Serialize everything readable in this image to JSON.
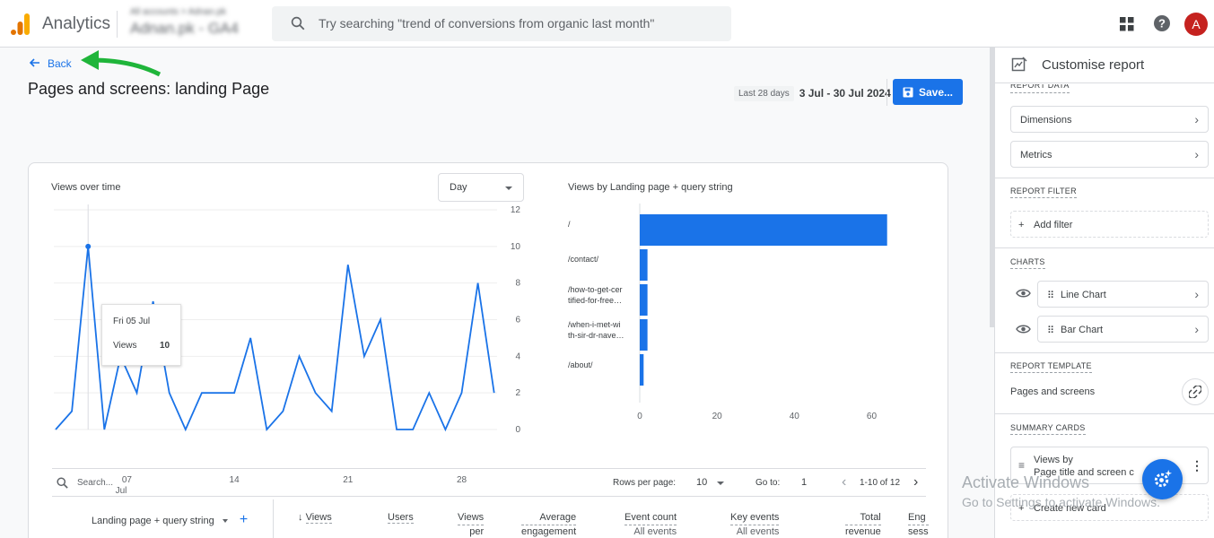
{
  "app": {
    "title": "Analytics",
    "account_small": "All accounts > Adnan.pk",
    "account_name": "Adnan.pk - GA4"
  },
  "search": {
    "placeholder": "Try searching \"trend of conversions from organic last month\""
  },
  "user": {
    "avatar_letter": "A"
  },
  "nav": {
    "back_label": "Back"
  },
  "page": {
    "title": "Pages and screens: landing Page"
  },
  "date": {
    "label": "Last 28 days",
    "range": "3 Jul - 30 Jul 2024"
  },
  "actions": {
    "save_label": "Save..."
  },
  "line_card": {
    "title": "Views over time",
    "granularity": "Day",
    "x_ticks": [
      "07",
      "14",
      "21",
      "28"
    ],
    "x_month": "Jul",
    "y_ticks": [
      "12",
      "10",
      "8",
      "6",
      "4",
      "2",
      "0"
    ]
  },
  "tooltip": {
    "date": "Fri 05 Jul",
    "metric": "Views",
    "value": "10"
  },
  "bar_card": {
    "title": "Views by Landing page + query string",
    "labels": [
      "/",
      "/contact/",
      "/how-to-get-cer",
      "tified-for-free…",
      "/when-i-met-wi",
      "th-sir-dr-nave…",
      "/about/"
    ],
    "x_ticks": [
      "0",
      "20",
      "40",
      "60"
    ]
  },
  "chart_data": [
    {
      "type": "line",
      "title": "Views over time",
      "x": [
        "3 Jul",
        "4 Jul",
        "5 Jul",
        "6 Jul",
        "7 Jul",
        "8 Jul",
        "9 Jul",
        "10 Jul",
        "11 Jul",
        "12 Jul",
        "13 Jul",
        "14 Jul",
        "15 Jul",
        "16 Jul",
        "17 Jul",
        "18 Jul",
        "19 Jul",
        "20 Jul",
        "21 Jul",
        "22 Jul",
        "23 Jul",
        "24 Jul",
        "25 Jul",
        "26 Jul",
        "27 Jul",
        "28 Jul",
        "29 Jul",
        "30 Jul"
      ],
      "series": [
        {
          "name": "Views",
          "values": [
            0,
            1,
            10,
            0,
            4,
            2,
            7,
            2,
            0,
            2,
            2,
            2,
            5,
            0,
            1,
            4,
            2,
            1,
            9,
            4,
            6,
            0,
            0,
            2,
            0,
            2,
            8,
            2
          ]
        }
      ],
      "ylim": [
        0,
        12
      ],
      "grid": true
    },
    {
      "type": "bar",
      "title": "Views by Landing page + query string",
      "categories": [
        "/",
        "/contact/",
        "/how-to-get-certified-for-free…",
        "/when-i-met-with-sir-dr-nave…",
        "/about/"
      ],
      "values": [
        64,
        2,
        2,
        2,
        1
      ],
      "xlim": [
        0,
        65
      ]
    }
  ],
  "table": {
    "search_placeholder": "Search...",
    "rows_per_page_label": "Rows per page:",
    "rows_per_page": "10",
    "goto_label": "Go to:",
    "goto_value": "1",
    "page_count": "1-10 of 12",
    "dimension_header": "Landing page + query string",
    "columns": [
      {
        "label": "Views",
        "sub": ""
      },
      {
        "label": "Users",
        "sub": ""
      },
      {
        "label": "Views",
        "sub": "per"
      },
      {
        "label": "Average",
        "sub": "engagement"
      },
      {
        "label": "Event count",
        "sub": "All events"
      },
      {
        "label": "Key events",
        "sub": "All events"
      },
      {
        "label": "Total",
        "sub": "revenue"
      },
      {
        "label": "Eng",
        "sub": "sess"
      }
    ]
  },
  "panel": {
    "title": "Customise report",
    "report_data_label": "REPORT DATA",
    "dimensions": "Dimensions",
    "metrics": "Metrics",
    "filter_label": "REPORT FILTER",
    "add_filter": "Add filter",
    "charts_label": "CHARTS",
    "line_chart": "Line Chart",
    "bar_chart": "Bar Chart",
    "template_label": "REPORT TEMPLATE",
    "template_value": "Pages and screens",
    "summary_label": "SUMMARY CARDS",
    "summary_card_line1": "Views by",
    "summary_card_line2": "Page title and screen c",
    "create_card": "Create new card"
  },
  "watermark": {
    "line1": "Activate Windows",
    "line2": "Go to Settings to activate Windows."
  },
  "colors": {
    "primary": "#1a73e8",
    "annotation_arrow": "#1fb53a",
    "avatar": "#c5221f"
  }
}
